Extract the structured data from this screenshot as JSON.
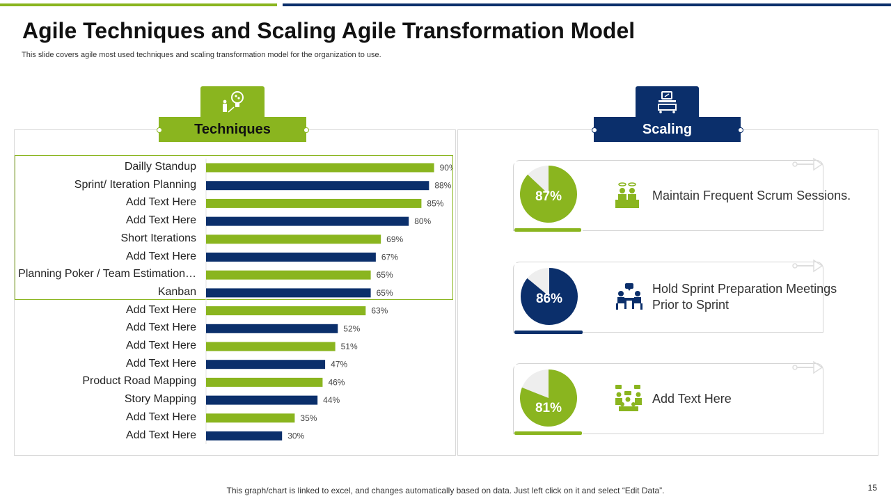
{
  "slide": {
    "title": "Agile Techniques and Scaling Agile Transformation Model",
    "subtitle": "This slide covers agile most used techniques and scaling transformation model for the organization to use.",
    "footer": "This graph/chart is linked to excel,  and changes automatically based on data. Just left click on it and select “Edit Data”.",
    "page_number": "15"
  },
  "colors": {
    "green": "#8ab51f",
    "blue": "#0b2f6b",
    "grey": "#eeeeee"
  },
  "techniques": {
    "heading": "Techniques",
    "icon": "lightbulb-person-icon"
  },
  "scaling": {
    "heading": "Scaling",
    "icon": "projector-desk-icon",
    "cards": [
      {
        "percent_label": "87%",
        "value": 87,
        "color": "green",
        "text": "Maintain  Frequent Scrum Sessions.",
        "icon": "meeting-table-icon"
      },
      {
        "percent_label": "86%",
        "value": 86,
        "color": "blue",
        "text": "Hold Sprint Preparation Meetings Prior to Sprint",
        "icon": "discussion-table-icon"
      },
      {
        "percent_label": "81%",
        "value": 81,
        "color": "green",
        "text": "Add Text Here",
        "icon": "team-chat-icon"
      }
    ]
  },
  "chart_data": {
    "type": "bar",
    "orientation": "horizontal",
    "categories": [
      "Dailly Standup",
      "Sprint/ Iteration Planning",
      "Add Text Here",
      "Add Text Here",
      "Short Iterations",
      "Add Text Here",
      "Planning Poker / Team Estimation…",
      "Kanban",
      "Add Text Here",
      "Add Text Here",
      "Add Text Here",
      "Add Text Here",
      "Product Road Mapping",
      "Story Mapping",
      "Add Text Here",
      "Add Text Here"
    ],
    "values": [
      90,
      88,
      85,
      80,
      69,
      67,
      65,
      65,
      63,
      52,
      51,
      47,
      46,
      44,
      35,
      30
    ],
    "value_labels": [
      "90%",
      "88%",
      "85%",
      "80%",
      "69%",
      "67%",
      "65%",
      "65%",
      "63%",
      "52%",
      "51%",
      "47%",
      "46%",
      "44%",
      "35%",
      "30%"
    ],
    "bar_colors": [
      "green",
      "blue",
      "green",
      "blue",
      "green",
      "blue",
      "green",
      "blue",
      "green",
      "blue",
      "green",
      "blue",
      "green",
      "blue",
      "green",
      "blue"
    ],
    "xlim": [
      0,
      100
    ],
    "grid": false,
    "highlighted_range": [
      0,
      7
    ]
  }
}
